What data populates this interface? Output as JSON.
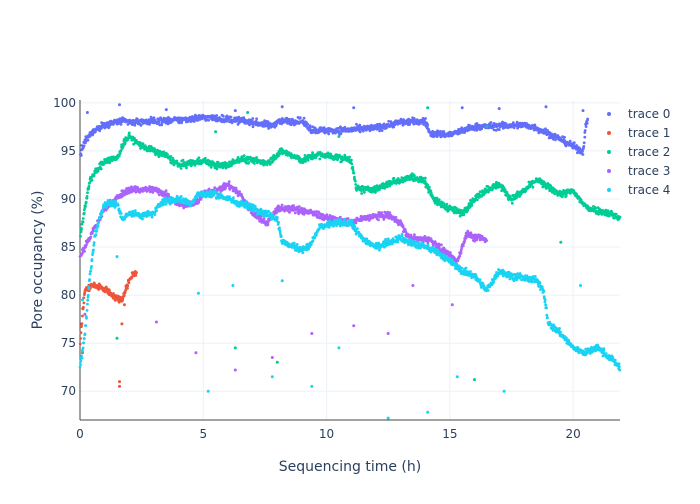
{
  "chart_data": {
    "type": "scatter",
    "title": "",
    "xlabel": "Sequencing time (h)",
    "ylabel": "Pore occupancy (%)",
    "xlim": [
      0,
      21.9
    ],
    "ylim": [
      67,
      100.3
    ],
    "xticks": [
      0,
      5,
      10,
      15,
      20
    ],
    "yticks": [
      70,
      75,
      80,
      85,
      90,
      95,
      100
    ],
    "grid": true,
    "legend_position": "top-right",
    "series": [
      {
        "name": "trace 0",
        "color": "#636efa",
        "x_range": [
          0,
          20.6
        ],
        "trend": [
          [
            0,
            94.5
          ],
          [
            0.2,
            96
          ],
          [
            0.6,
            97.2
          ],
          [
            1,
            97.7
          ],
          [
            1.6,
            98.1
          ],
          [
            2,
            98
          ],
          [
            3,
            98.1
          ],
          [
            4,
            98.2
          ],
          [
            5,
            98.5
          ],
          [
            6,
            98.3
          ],
          [
            7,
            98
          ],
          [
            7.8,
            97.6
          ],
          [
            8,
            98.1
          ],
          [
            9,
            98.1
          ],
          [
            9.4,
            97.2
          ],
          [
            10,
            97.1
          ],
          [
            11,
            97.2
          ],
          [
            12,
            97.4
          ],
          [
            13,
            98
          ],
          [
            14,
            98.1
          ],
          [
            14.2,
            96.8
          ],
          [
            15,
            96.7
          ],
          [
            16,
            97.5
          ],
          [
            17,
            97.6
          ],
          [
            18,
            97.7
          ],
          [
            18.5,
            97.4
          ],
          [
            19,
            96.8
          ],
          [
            19.5,
            96.2
          ],
          [
            20,
            95.5
          ],
          [
            20.4,
            94.9
          ],
          [
            20.5,
            97.5
          ],
          [
            20.6,
            98.2
          ]
        ],
        "outliers": [
          [
            0.3,
            99
          ],
          [
            1.6,
            99.8
          ],
          [
            3.5,
            99.3
          ],
          [
            6.3,
            99.2
          ],
          [
            8.2,
            99.6
          ],
          [
            11.1,
            99.5
          ],
          [
            15.5,
            99.5
          ],
          [
            17,
            99.4
          ],
          [
            18.9,
            99.6
          ],
          [
            20.4,
            99.2
          ]
        ]
      },
      {
        "name": "trace 1",
        "color": "#ef553b",
        "x_range": [
          0,
          2.3
        ],
        "trend": [
          [
            0,
            75
          ],
          [
            0.1,
            78
          ],
          [
            0.2,
            80.5
          ],
          [
            0.5,
            81
          ],
          [
            0.8,
            80.8
          ],
          [
            1.1,
            80.5
          ],
          [
            1.4,
            79.8
          ],
          [
            1.7,
            79.5
          ],
          [
            1.9,
            81
          ],
          [
            2.1,
            82
          ],
          [
            2.3,
            82.5
          ]
        ],
        "outliers": [
          [
            0.1,
            74
          ],
          [
            1.6,
            71
          ],
          [
            1.6,
            70.5
          ],
          [
            1.7,
            77
          ],
          [
            1.8,
            79
          ]
        ]
      },
      {
        "name": "trace 2",
        "color": "#00cc96",
        "x_range": [
          0,
          21.9
        ],
        "trend": [
          [
            0,
            86
          ],
          [
            0.4,
            92
          ],
          [
            1,
            94
          ],
          [
            1.5,
            94.2
          ],
          [
            1.8,
            96
          ],
          [
            2,
            96.5
          ],
          [
            2.5,
            95.5
          ],
          [
            3,
            95
          ],
          [
            3.5,
            94.5
          ],
          [
            4,
            93.5
          ],
          [
            4.5,
            93.7
          ],
          [
            5,
            94
          ],
          [
            5.5,
            93.5
          ],
          [
            6,
            93.5
          ],
          [
            6.5,
            94.2
          ],
          [
            7,
            94
          ],
          [
            7.6,
            93.8
          ],
          [
            8.2,
            95
          ],
          [
            9,
            94
          ],
          [
            9.6,
            94.6
          ],
          [
            10,
            94.5
          ],
          [
            11,
            94.1
          ],
          [
            11.2,
            91
          ],
          [
            12,
            91
          ],
          [
            12.7,
            91.8
          ],
          [
            13.5,
            92.3
          ],
          [
            14,
            91.8
          ],
          [
            14.4,
            89.8
          ],
          [
            15,
            89
          ],
          [
            15.5,
            88.5
          ],
          [
            16,
            90
          ],
          [
            16.5,
            91
          ],
          [
            17,
            91.5
          ],
          [
            17.5,
            90
          ],
          [
            18,
            90.8
          ],
          [
            18.5,
            92
          ],
          [
            19,
            91.2
          ],
          [
            19.5,
            90.5
          ],
          [
            20,
            90.8
          ],
          [
            20.5,
            89.2
          ],
          [
            21,
            88.8
          ],
          [
            21.5,
            88.5
          ],
          [
            21.9,
            88
          ]
        ],
        "outliers": [
          [
            5.5,
            97
          ],
          [
            6.8,
            99
          ],
          [
            10.5,
            96.5
          ],
          [
            14.1,
            99.5
          ],
          [
            16,
            71.2
          ],
          [
            16.5,
            97.5
          ],
          [
            19.5,
            85.5
          ],
          [
            8,
            73
          ],
          [
            6.3,
            74.5
          ],
          [
            1.5,
            75.5
          ]
        ]
      },
      {
        "name": "trace 3",
        "color": "#ab63fa",
        "x_range": [
          0,
          16.5
        ],
        "trend": [
          [
            0,
            84
          ],
          [
            0.4,
            86
          ],
          [
            1,
            89
          ],
          [
            1.7,
            90.5
          ],
          [
            2,
            91
          ],
          [
            3,
            91
          ],
          [
            3.5,
            90.5
          ],
          [
            4,
            89.5
          ],
          [
            4.7,
            89.5
          ],
          [
            5,
            90.5
          ],
          [
            5.7,
            91
          ],
          [
            6,
            91.5
          ],
          [
            6.5,
            90.5
          ],
          [
            7,
            88.5
          ],
          [
            7.3,
            88
          ],
          [
            7.6,
            87.5
          ],
          [
            8,
            89
          ],
          [
            8.5,
            89
          ],
          [
            9,
            88.8
          ],
          [
            9.5,
            88.5
          ],
          [
            10,
            88
          ],
          [
            10.5,
            87.8
          ],
          [
            11,
            87.5
          ],
          [
            11.5,
            88
          ],
          [
            12,
            88.2
          ],
          [
            12.5,
            88.3
          ],
          [
            13,
            87.5
          ],
          [
            13.3,
            86
          ],
          [
            13.8,
            85.8
          ],
          [
            14.2,
            85.8
          ],
          [
            14.8,
            84.5
          ],
          [
            15,
            84
          ],
          [
            15.3,
            83.5
          ],
          [
            15.7,
            86.5
          ],
          [
            16,
            86
          ],
          [
            16.3,
            86
          ],
          [
            16.5,
            85.5
          ]
        ],
        "outliers": [
          [
            0.2,
            78
          ],
          [
            3.1,
            77.2
          ],
          [
            4.7,
            74
          ],
          [
            6.3,
            72.2
          ],
          [
            7.8,
            73.5
          ],
          [
            11.1,
            76.8
          ],
          [
            12.5,
            76
          ],
          [
            13.5,
            81
          ],
          [
            15.1,
            79
          ],
          [
            9.4,
            76
          ]
        ]
      },
      {
        "name": "trace 4",
        "color": "#19d3f3",
        "x_range": [
          0,
          21.9
        ],
        "trend": [
          [
            0,
            72.5
          ],
          [
            0.2,
            76
          ],
          [
            0.4,
            82
          ],
          [
            0.6,
            86
          ],
          [
            0.8,
            88
          ],
          [
            1,
            89.5
          ],
          [
            1.5,
            89.5
          ],
          [
            1.7,
            88
          ],
          [
            2,
            88.5
          ],
          [
            2.5,
            88.3
          ],
          [
            3,
            88.5
          ],
          [
            3.3,
            89.7
          ],
          [
            4,
            90
          ],
          [
            4.5,
            89.5
          ],
          [
            4.8,
            90.5
          ],
          [
            5.5,
            90.5
          ],
          [
            6,
            90
          ],
          [
            6.5,
            89.5
          ],
          [
            7,
            89.2
          ],
          [
            7.5,
            88.5
          ],
          [
            8,
            88
          ],
          [
            8.2,
            85.5
          ],
          [
            8.7,
            85
          ],
          [
            9,
            84.8
          ],
          [
            9.3,
            85
          ],
          [
            9.7,
            87
          ],
          [
            10,
            87.3
          ],
          [
            10.5,
            87.5
          ],
          [
            11,
            87.5
          ],
          [
            11.4,
            86
          ],
          [
            12,
            85
          ],
          [
            12.5,
            85.5
          ],
          [
            13,
            86
          ],
          [
            13.5,
            85.3
          ],
          [
            14,
            85
          ],
          [
            14.5,
            84.5
          ],
          [
            15,
            83.5
          ],
          [
            15.5,
            82.5
          ],
          [
            16,
            82
          ],
          [
            16.5,
            80.5
          ],
          [
            17,
            82.5
          ],
          [
            17.5,
            82
          ],
          [
            18,
            81.8
          ],
          [
            18.5,
            81.5
          ],
          [
            18.8,
            80.5
          ],
          [
            19,
            77
          ],
          [
            19.5,
            76
          ],
          [
            20,
            74.5
          ],
          [
            20.5,
            74
          ],
          [
            21,
            74.5
          ],
          [
            21.5,
            73.5
          ],
          [
            21.9,
            72.5
          ]
        ],
        "outliers": [
          [
            1.5,
            84
          ],
          [
            4.8,
            80.2
          ],
          [
            5.2,
            70
          ],
          [
            6.2,
            81
          ],
          [
            7.8,
            71.5
          ],
          [
            9.4,
            70.5
          ],
          [
            10.5,
            74.5
          ],
          [
            12.5,
            67.2
          ],
          [
            14.1,
            67.8
          ],
          [
            15.3,
            71.5
          ],
          [
            17.2,
            70
          ],
          [
            20.3,
            81
          ],
          [
            0.1,
            79.5
          ],
          [
            8.2,
            81.5
          ]
        ]
      }
    ]
  }
}
